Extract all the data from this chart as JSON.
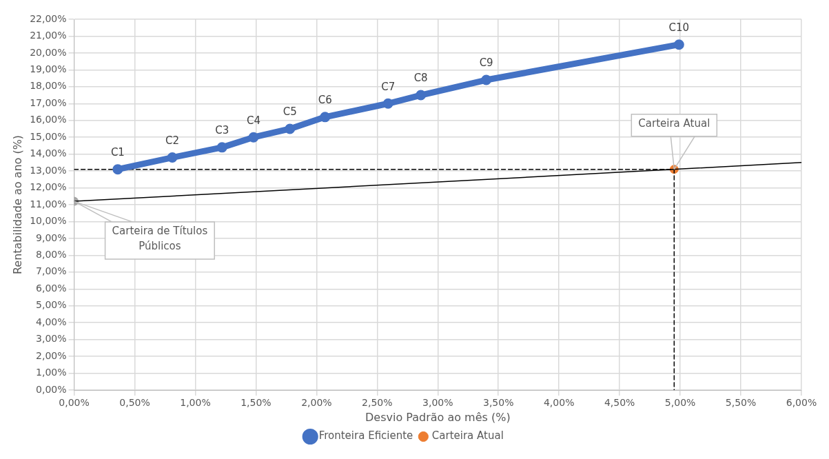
{
  "chart_data": {
    "type": "line",
    "xlabel": "Desvio Padrão ao mês (%)",
    "ylabel": "Rentabilidade ao ano (%)",
    "xlim": [
      0,
      6
    ],
    "ylim": [
      0,
      22
    ],
    "xticks": [
      {
        "value": 0,
        "label": "0,00%"
      },
      {
        "value": 0.5,
        "label": "0,50%"
      },
      {
        "value": 1,
        "label": "1,00%"
      },
      {
        "value": 1.5,
        "label": "1,50%"
      },
      {
        "value": 2,
        "label": "2,00%"
      },
      {
        "value": 2.5,
        "label": "2,50%"
      },
      {
        "value": 3,
        "label": "3,00%"
      },
      {
        "value": 3.5,
        "label": "3,50%"
      },
      {
        "value": 4,
        "label": "4,00%"
      },
      {
        "value": 4.5,
        "label": "4,50%"
      },
      {
        "value": 5,
        "label": "5,00%"
      },
      {
        "value": 5.5,
        "label": "5,50%"
      },
      {
        "value": 6,
        "label": "6,00%"
      }
    ],
    "yticks": [
      {
        "value": 0,
        "label": "0,00%"
      },
      {
        "value": 1,
        "label": "1,00%"
      },
      {
        "value": 2,
        "label": "2,00%"
      },
      {
        "value": 3,
        "label": "3,00%"
      },
      {
        "value": 4,
        "label": "4,00%"
      },
      {
        "value": 5,
        "label": "5,00%"
      },
      {
        "value": 6,
        "label": "6,00%"
      },
      {
        "value": 7,
        "label": "7,00%"
      },
      {
        "value": 8,
        "label": "8,00%"
      },
      {
        "value": 9,
        "label": "9,00%"
      },
      {
        "value": 10,
        "label": "10,00%"
      },
      {
        "value": 11,
        "label": "11,00%"
      },
      {
        "value": 12,
        "label": "12,00%"
      },
      {
        "value": 13,
        "label": "13,00%"
      },
      {
        "value": 14,
        "label": "14,00%"
      },
      {
        "value": 15,
        "label": "15,00%"
      },
      {
        "value": 16,
        "label": "16,00%"
      },
      {
        "value": 17,
        "label": "17,00%"
      },
      {
        "value": 18,
        "label": "18,00%"
      },
      {
        "value": 19,
        "label": "19,00%"
      },
      {
        "value": 20,
        "label": "20,00%"
      },
      {
        "value": 21,
        "label": "21,00%"
      },
      {
        "value": 22,
        "label": "22,00%"
      }
    ],
    "grid": true,
    "legend": "bottom",
    "series": [
      {
        "name": "Fronteira Eficiente",
        "type": "line",
        "color": "#4472c4",
        "marker": "circle",
        "x": [
          0.36,
          0.81,
          1.22,
          1.48,
          1.78,
          2.07,
          2.59,
          2.86,
          3.4,
          4.99
        ],
        "values": [
          13.1,
          13.8,
          14.4,
          15.0,
          15.5,
          16.2,
          17.0,
          17.5,
          18.4,
          20.5
        ],
        "value_labels": [
          "C1",
          "C2",
          "C3",
          "C4",
          "C5",
          "C6",
          "C7",
          "C8",
          "C9",
          "C10"
        ]
      },
      {
        "type": "line",
        "color": "#000000",
        "marker": "none",
        "line_style": "solid",
        "x": [
          0,
          6
        ],
        "values": [
          11.2,
          13.5
        ]
      },
      {
        "type": "line",
        "color": "#000000",
        "marker": "none",
        "line_style": "dashed",
        "x": [
          0,
          4.95,
          4.95
        ],
        "values": [
          13.1,
          13.1,
          0
        ]
      },
      {
        "type": "scatter",
        "color": "#a5a5a5",
        "x": [
          0
        ],
        "values": [
          11.2
        ]
      },
      {
        "name": "Carteira Atual",
        "type": "scatter",
        "color": "#ed7d31",
        "x": [
          4.95
        ],
        "values": [
          13.1
        ]
      }
    ],
    "annotations": [
      {
        "text": "Carteira de Títulos Públicos",
        "x": 0,
        "y": 11.2
      },
      {
        "text": "Carteira Atual",
        "x": 4.95,
        "y": 13.1
      }
    ]
  }
}
